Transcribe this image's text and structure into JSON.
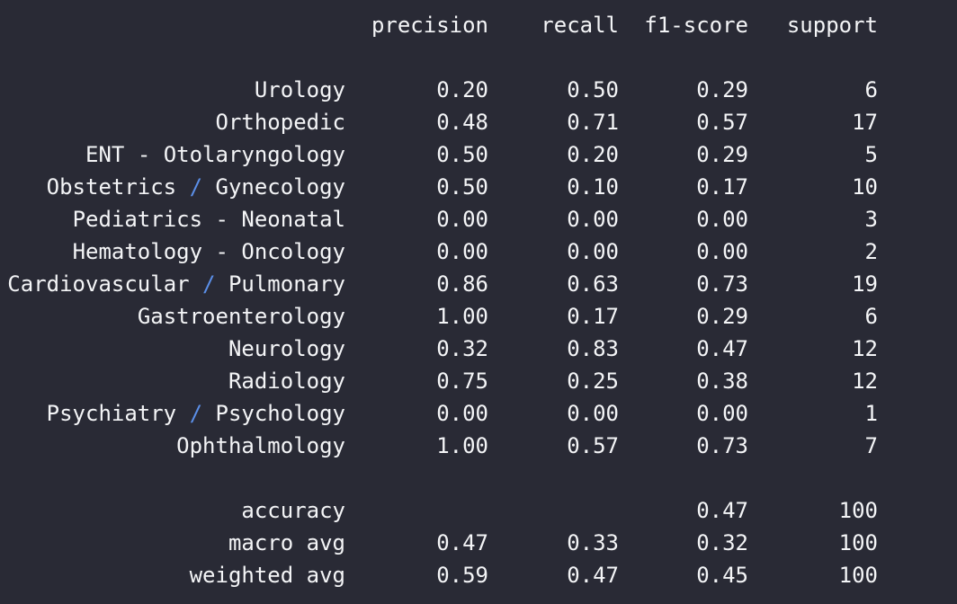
{
  "header": {
    "precision": "precision",
    "recall": "recall",
    "f1_score": "f1-score",
    "support": "support"
  },
  "rows": [
    {
      "pre": "Urology",
      "slash": "",
      "post": "",
      "precision": "0.20",
      "recall": "0.50",
      "f1": "0.29",
      "support": "6"
    },
    {
      "pre": "Orthopedic",
      "slash": "",
      "post": "",
      "precision": "0.48",
      "recall": "0.71",
      "f1": "0.57",
      "support": "17"
    },
    {
      "pre": "ENT - Otolaryngology",
      "slash": "",
      "post": "",
      "precision": "0.50",
      "recall": "0.20",
      "f1": "0.29",
      "support": "5"
    },
    {
      "pre": "Obstetrics ",
      "slash": "/",
      "post": " Gynecology",
      "precision": "0.50",
      "recall": "0.10",
      "f1": "0.17",
      "support": "10"
    },
    {
      "pre": "Pediatrics - Neonatal",
      "slash": "",
      "post": "",
      "precision": "0.00",
      "recall": "0.00",
      "f1": "0.00",
      "support": "3"
    },
    {
      "pre": "Hematology - Oncology",
      "slash": "",
      "post": "",
      "precision": "0.00",
      "recall": "0.00",
      "f1": "0.00",
      "support": "2"
    },
    {
      "pre": "Cardiovascular ",
      "slash": "/",
      "post": " Pulmonary",
      "precision": "0.86",
      "recall": "0.63",
      "f1": "0.73",
      "support": "19"
    },
    {
      "pre": "Gastroenterology",
      "slash": "",
      "post": "",
      "precision": "1.00",
      "recall": "0.17",
      "f1": "0.29",
      "support": "6"
    },
    {
      "pre": "Neurology",
      "slash": "",
      "post": "",
      "precision": "0.32",
      "recall": "0.83",
      "f1": "0.47",
      "support": "12"
    },
    {
      "pre": "Radiology",
      "slash": "",
      "post": "",
      "precision": "0.75",
      "recall": "0.25",
      "f1": "0.38",
      "support": "12"
    },
    {
      "pre": "Psychiatry ",
      "slash": "/",
      "post": " Psychology",
      "precision": "0.00",
      "recall": "0.00",
      "f1": "0.00",
      "support": "1"
    },
    {
      "pre": "Ophthalmology",
      "slash": "",
      "post": "",
      "precision": "1.00",
      "recall": "0.57",
      "f1": "0.73",
      "support": "7"
    }
  ],
  "summary": [
    {
      "label": "accuracy",
      "precision": "",
      "recall": "",
      "f1": "0.47",
      "support": "100"
    },
    {
      "label": "macro avg",
      "precision": "0.47",
      "recall": "0.33",
      "f1": "0.32",
      "support": "100"
    },
    {
      "label": "weighted avg",
      "precision": "0.59",
      "recall": "0.47",
      "f1": "0.45",
      "support": "100"
    }
  ],
  "colors": {
    "background": "#292a35",
    "text": "#f4f5f7",
    "slash_accent": "#5b8fe8"
  }
}
